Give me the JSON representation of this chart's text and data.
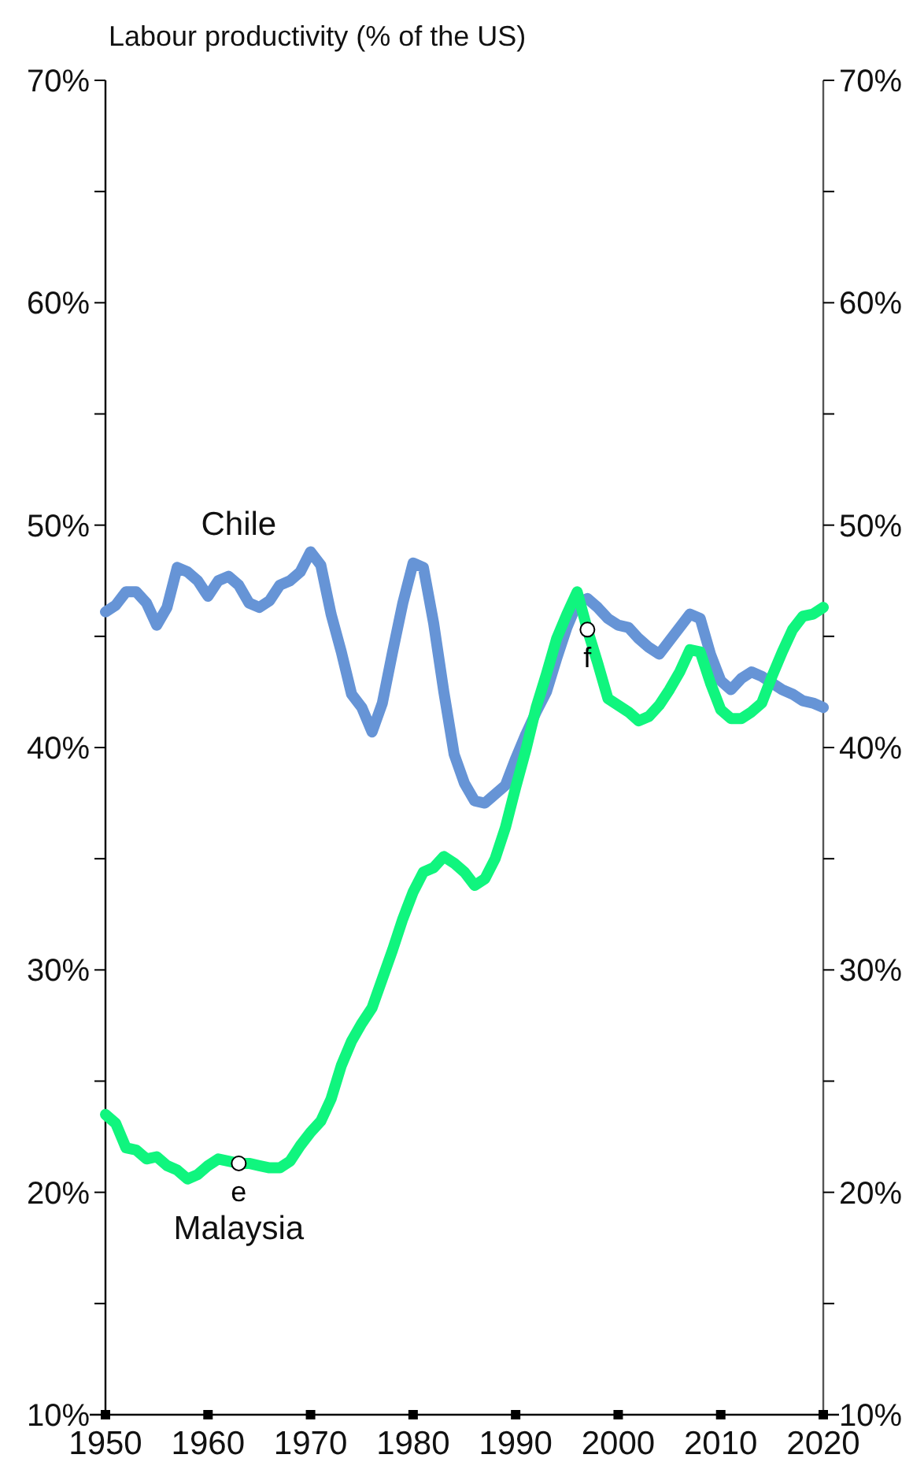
{
  "chart_data": {
    "type": "line",
    "title": "Labour productivity (% of the US)",
    "x": [
      1950,
      1951,
      1952,
      1953,
      1954,
      1955,
      1956,
      1957,
      1958,
      1959,
      1960,
      1961,
      1962,
      1963,
      1964,
      1965,
      1966,
      1967,
      1968,
      1969,
      1970,
      1971,
      1972,
      1973,
      1974,
      1975,
      1976,
      1977,
      1978,
      1979,
      1980,
      1981,
      1982,
      1983,
      1984,
      1985,
      1986,
      1987,
      1988,
      1989,
      1990,
      1991,
      1992,
      1993,
      1994,
      1995,
      1996,
      1997,
      1998,
      1999,
      2000,
      2001,
      2002,
      2003,
      2004,
      2005,
      2006,
      2007,
      2008,
      2009,
      2010,
      2011,
      2012,
      2013,
      2014,
      2015,
      2016,
      2017,
      2018,
      2019,
      2020
    ],
    "series": [
      {
        "name": "Chile",
        "color": "#6694d6",
        "values": [
          46.1,
          46.4,
          47.0,
          47.0,
          46.5,
          45.5,
          46.3,
          48.1,
          47.9,
          47.5,
          46.8,
          47.5,
          47.7,
          47.3,
          46.5,
          46.3,
          46.6,
          47.3,
          47.5,
          47.9,
          48.8,
          48.2,
          46.0,
          44.3,
          42.4,
          41.8,
          40.7,
          42.0,
          44.3,
          46.5,
          48.3,
          48.1,
          45.6,
          42.5,
          39.7,
          38.4,
          37.6,
          37.5,
          37.9,
          38.3,
          39.5,
          40.6,
          41.6,
          42.5,
          44.0,
          45.4,
          46.5,
          46.7,
          46.3,
          45.8,
          45.5,
          45.4,
          44.9,
          44.5,
          44.2,
          44.8,
          45.4,
          46.0,
          45.8,
          44.2,
          43.0,
          42.6,
          43.1,
          43.4,
          43.2,
          42.9,
          42.6,
          42.4,
          42.1,
          42.0,
          41.8
        ]
      },
      {
        "name": "Malaysia",
        "color": "#10f57e",
        "values": [
          23.5,
          23.1,
          22.0,
          21.9,
          21.5,
          21.6,
          21.2,
          21.0,
          20.6,
          20.8,
          21.2,
          21.5,
          21.4,
          21.3,
          21.3,
          21.2,
          21.1,
          21.1,
          21.4,
          22.1,
          22.7,
          23.2,
          24.2,
          25.7,
          26.8,
          27.6,
          28.3,
          29.6,
          30.9,
          32.3,
          33.5,
          34.4,
          34.6,
          35.1,
          34.8,
          34.4,
          33.8,
          34.1,
          35.0,
          36.4,
          38.2,
          39.9,
          41.8,
          43.3,
          44.9,
          46.0,
          47.0,
          45.3,
          43.8,
          42.2,
          41.9,
          41.6,
          41.2,
          41.4,
          41.9,
          42.6,
          43.4,
          44.4,
          44.3,
          42.9,
          41.7,
          41.3,
          41.3,
          41.6,
          42.0,
          43.2,
          44.3,
          45.3,
          45.9,
          46.0,
          46.3
        ]
      }
    ],
    "annotations": [
      {
        "text": "e",
        "x": 1963,
        "y": 21.3
      },
      {
        "text": "f",
        "x": 1997,
        "y": 45.3
      }
    ],
    "xlim": [
      1950,
      2020
    ],
    "xticks": [
      1950,
      1960,
      1970,
      1980,
      1990,
      2000,
      2010,
      2020
    ],
    "ylim": [
      10,
      70
    ],
    "yticks": [
      {
        "value": 10,
        "label": "10%"
      },
      {
        "value": 15,
        "label": null
      },
      {
        "value": 20,
        "label": "20%"
      },
      {
        "value": 25,
        "label": null
      },
      {
        "value": 30,
        "label": "30%"
      },
      {
        "value": 35,
        "label": null
      },
      {
        "value": 40,
        "label": "40%"
      },
      {
        "value": 45,
        "label": null
      },
      {
        "value": 50,
        "label": "50%"
      },
      {
        "value": 55,
        "label": null
      },
      {
        "value": 60,
        "label": "60%"
      },
      {
        "value": 65,
        "label": null
      },
      {
        "value": 70,
        "label": "70%"
      }
    ],
    "y2lim": [
      10,
      70
    ],
    "y2ticks": [
      {
        "value": 10,
        "label": "10%"
      },
      {
        "value": 15,
        "label": null
      },
      {
        "value": 20,
        "label": "20%"
      },
      {
        "value": 25,
        "label": null
      },
      {
        "value": 30,
        "label": "30%"
      },
      {
        "value": 35,
        "label": null
      },
      {
        "value": 40,
        "label": "40%"
      },
      {
        "value": 45,
        "label": null
      },
      {
        "value": 50,
        "label": "50%"
      },
      {
        "value": 55,
        "label": null
      },
      {
        "value": 60,
        "label": "60%"
      },
      {
        "value": 65,
        "label": null
      },
      {
        "value": 70,
        "label": "70%"
      }
    ],
    "grid": false,
    "legend": false,
    "marker": "none",
    "line_style": "solid"
  }
}
